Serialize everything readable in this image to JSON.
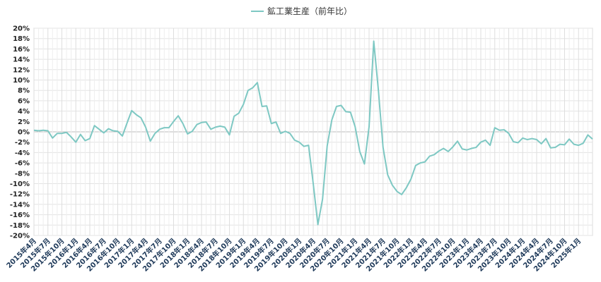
{
  "chart_data": {
    "type": "line",
    "title": "",
    "xlabel": "",
    "ylabel": "",
    "ylim": [
      -20,
      20
    ],
    "y_step": 2,
    "y_tick_suffix": "%",
    "grid": true,
    "legend_position": "top-center",
    "x_tick_labels": [
      "2015年4月",
      "2015年7月",
      "2015年10月",
      "2016年1月",
      "2016年4月",
      "2016年7月",
      "2016年10月",
      "2017年1月",
      "2017年4月",
      "2017年7月",
      "2017年10月",
      "2018年1月",
      "2018年4月",
      "2018年7月",
      "2018年10月",
      "2019年1月",
      "2019年4月",
      "2019年7月",
      "2019年10月",
      "2020年1月",
      "2020年4月",
      "2020年7月",
      "2020年10月",
      "2021年1月",
      "2021年4月",
      "2021年7月",
      "2021年10月",
      "2022年1月",
      "2022年4月",
      "2022年7月",
      "2022年10月",
      "2023年1月",
      "2023年4月",
      "2023年7月",
      "2023年10月",
      "2024年1月",
      "2024年4月",
      "2024年7月",
      "2024年10月",
      "2025年1月"
    ],
    "x_tick_every": 3,
    "series": [
      {
        "name": "鉱工業生産（前年比）",
        "color": "#7ec8c3",
        "values": [
          0.3,
          0.2,
          0.3,
          0.2,
          -1.2,
          -0.3,
          -0.3,
          -0.1,
          -1.0,
          -2.0,
          -0.5,
          -1.7,
          -1.3,
          1.2,
          0.5,
          -0.2,
          0.6,
          0.2,
          0.1,
          -0.8,
          1.7,
          4.1,
          3.3,
          2.7,
          0.9,
          -1.8,
          -0.3,
          0.5,
          0.8,
          0.8,
          2.0,
          3.1,
          1.6,
          -0.4,
          0.1,
          1.4,
          1.8,
          1.9,
          0.5,
          0.9,
          1.1,
          0.9,
          -0.6,
          3.0,
          3.6,
          5.3,
          8.0,
          8.5,
          9.5,
          4.9,
          5.0,
          1.6,
          1.9,
          -0.3,
          0.1,
          -0.3,
          -1.6,
          -2.0,
          -2.8,
          -2.6,
          -10.0,
          -17.9,
          -13.0,
          -2.7,
          2.3,
          4.9,
          5.1,
          3.9,
          3.8,
          1.0,
          -3.8,
          -6.2,
          1.0,
          17.5,
          8.0,
          -3.0,
          -8.3,
          -10.3,
          -11.5,
          -12.1,
          -10.8,
          -9.1,
          -6.5,
          -6.0,
          -5.8,
          -4.7,
          -4.4,
          -3.7,
          -3.2,
          -3.8,
          -2.9,
          -1.8,
          -3.3,
          -3.5,
          -3.2,
          -3.0,
          -2.0,
          -1.6,
          -2.6,
          0.8,
          0.3,
          0.4,
          -0.3,
          -1.9,
          -2.1,
          -1.2,
          -1.5,
          -1.3,
          -1.5,
          -2.3,
          -1.3,
          -3.1,
          -3.0,
          -2.4,
          -2.5,
          -1.4,
          -2.4,
          -2.6,
          -2.2,
          -0.6,
          -1.4
        ]
      }
    ]
  }
}
